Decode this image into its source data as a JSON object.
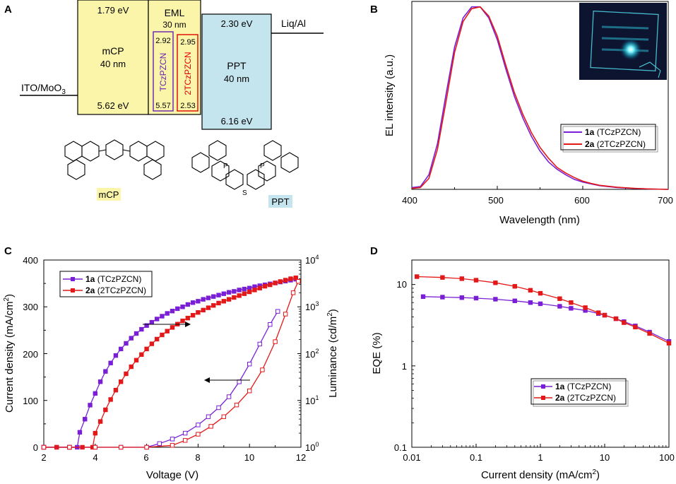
{
  "figure": {
    "panel_letters": [
      "A",
      "B",
      "C",
      "D"
    ]
  },
  "panelA": {
    "itoLabel": "ITO/MoO",
    "itoSub": "3",
    "liqLabel": "Liq/Al",
    "mcp": {
      "name": "mCP",
      "thickness": "40 nm",
      "lumo": "1.79 eV",
      "homo": "5.62 eV"
    },
    "eml": {
      "name": "EML",
      "thickness": "30 nm"
    },
    "tczpzcn": {
      "name": "TCzPZCN",
      "lumo": "2.92",
      "homo": "5.57"
    },
    "ttczpzcn": {
      "name": "2TCzPZCN",
      "lumo": "2.95",
      "homo": "2.53"
    },
    "ppt": {
      "name": "PPT",
      "thickness": "40 nm",
      "lumo": "2.30 eV",
      "homo": "6.16 eV"
    },
    "structureLabels": {
      "mcp": "mCP",
      "ppt": "PPT"
    },
    "colors": {
      "mcp": "#fbf5a9",
      "ppt": "#c5e5ee",
      "purple": "#6a1fb3",
      "red": "#e00000"
    }
  },
  "chart_data": [
    {
      "panel": "B",
      "type": "line",
      "xlabel": "Wavelength (nm)",
      "ylabel": "EL intensity (a.u.)",
      "xlim": [
        400,
        700
      ],
      "ylim": [
        0,
        1.03
      ],
      "xticks": [
        "400",
        "500",
        "600",
        "700"
      ],
      "yticks_shown": false,
      "legend": "bottom-right",
      "series": [
        {
          "name": "1a",
          "suffix": " (TCzPZCN)",
          "color": "#7a1fd6",
          "x": [
            400,
            410,
            420,
            430,
            440,
            450,
            460,
            470,
            480,
            490,
            500,
            510,
            520,
            530,
            540,
            550,
            560,
            570,
            580,
            590,
            600,
            610,
            620,
            640,
            660,
            680,
            700
          ],
          "values": [
            0.01,
            0.015,
            0.08,
            0.25,
            0.52,
            0.78,
            0.94,
            1.0,
            1.0,
            0.94,
            0.82,
            0.66,
            0.51,
            0.39,
            0.29,
            0.21,
            0.15,
            0.11,
            0.08,
            0.055,
            0.04,
            0.03,
            0.02,
            0.01,
            0.005,
            0.002,
            0.0
          ]
        },
        {
          "name": "2a",
          "suffix": " (2TCzPZCN)",
          "color": "#e31818",
          "x": [
            400,
            410,
            420,
            430,
            440,
            450,
            460,
            470,
            480,
            490,
            500,
            510,
            520,
            530,
            540,
            550,
            560,
            570,
            580,
            590,
            600,
            610,
            620,
            640,
            660,
            680,
            700
          ],
          "values": [
            0.005,
            0.01,
            0.06,
            0.22,
            0.48,
            0.75,
            0.92,
            0.99,
            1.0,
            0.95,
            0.84,
            0.68,
            0.53,
            0.41,
            0.31,
            0.23,
            0.17,
            0.12,
            0.09,
            0.065,
            0.045,
            0.032,
            0.022,
            0.012,
            0.006,
            0.002,
            0.0
          ]
        }
      ],
      "inset": "device photograph"
    },
    {
      "panel": "C",
      "type": "line",
      "xlabel": "Voltage (V)",
      "ylabel": "Current density (mA/cm",
      "ylabel_sup": "2",
      "ylabel_end": ")",
      "y2label": "Luminance (cd/m",
      "y2label_sup": "2",
      "y2label_end": ")",
      "xlim": [
        2,
        12
      ],
      "ylim": [
        0,
        400
      ],
      "y2lim": [
        1,
        10000
      ],
      "xticks": [
        "2",
        "4",
        "6",
        "8",
        "10",
        "12"
      ],
      "yticks": [
        "0",
        "100",
        "200",
        "300",
        "400"
      ],
      "y2ticks": [
        "10",
        "10",
        "10",
        "10",
        "10"
      ],
      "y2tick_exps": [
        "0",
        "1",
        "2",
        "3",
        "4"
      ],
      "legend": "top-left",
      "series": [
        {
          "name": "1a",
          "suffix": " (TCzPZCN)",
          "color": "#7a1fd6",
          "axis": "left",
          "filled": true,
          "x": [
            2.0,
            2.5,
            3.0,
            3.3,
            3.4,
            3.6,
            3.8,
            4.0,
            4.2,
            4.4,
            4.6,
            4.8,
            5.0,
            5.2,
            5.4,
            5.6,
            5.8,
            6.0,
            6.2,
            6.4,
            6.6,
            6.8,
            7.0,
            7.2,
            7.4,
            7.6,
            7.8,
            8.0,
            8.2,
            8.4,
            8.6,
            8.8,
            9.0,
            9.2,
            9.4,
            9.6,
            9.8,
            10.0,
            10.2,
            10.4,
            10.6,
            10.8,
            11.0,
            11.2,
            11.4,
            11.6,
            11.8
          ],
          "values": [
            0,
            0,
            0,
            0,
            32,
            60,
            90,
            115,
            140,
            162,
            180,
            196,
            210,
            222,
            233,
            243,
            252,
            260,
            267,
            274,
            280,
            286,
            291,
            296,
            300,
            305,
            309,
            312,
            316,
            319,
            322,
            325,
            328,
            331,
            333,
            336,
            338,
            340,
            343,
            345,
            347,
            349,
            351,
            353,
            355,
            357,
            359
          ]
        },
        {
          "name": "2a",
          "suffix": " (2TCzPZCN)",
          "color": "#e31818",
          "axis": "left",
          "filled": true,
          "x": [
            2.0,
            2.5,
            3.0,
            3.5,
            3.9,
            4.0,
            4.2,
            4.4,
            4.6,
            4.8,
            5.0,
            5.2,
            5.4,
            5.6,
            5.8,
            6.0,
            6.2,
            6.4,
            6.6,
            6.8,
            7.0,
            7.2,
            7.4,
            7.6,
            7.8,
            8.0,
            8.2,
            8.4,
            8.6,
            8.8,
            9.0,
            9.2,
            9.4,
            9.6,
            9.8,
            10.0,
            10.2,
            10.4,
            10.6,
            10.8,
            11.0,
            11.2,
            11.4,
            11.6,
            11.8
          ],
          "values": [
            0,
            0,
            0,
            0,
            0,
            30,
            55,
            80,
            102,
            122,
            140,
            157,
            172,
            186,
            198,
            210,
            221,
            231,
            240,
            248,
            256,
            263,
            270,
            276,
            282,
            288,
            293,
            298,
            303,
            308,
            312,
            316,
            320,
            324,
            328,
            332,
            336,
            340,
            344,
            347,
            351,
            354,
            357,
            360,
            362
          ]
        },
        {
          "name": "1a luminance",
          "color": "#7a1fd6",
          "axis": "right",
          "filled": false,
          "x": [
            2.0,
            3.0,
            4.0,
            5.0,
            6.0,
            6.5,
            7.0,
            7.5,
            8.0,
            8.4,
            8.8,
            9.2,
            9.6,
            10.0,
            10.4,
            10.8,
            11.1
          ],
          "values": [
            1,
            1,
            1,
            1,
            1,
            1.2,
            1.5,
            2,
            3,
            4.5,
            7,
            12,
            25,
            60,
            160,
            420,
            800
          ]
        },
        {
          "name": "2a luminance",
          "color": "#e31818",
          "axis": "right",
          "filled": false,
          "x": [
            2.0,
            3.0,
            4.0,
            5.0,
            6.0,
            7.0,
            7.5,
            8.0,
            8.5,
            9.0,
            9.5,
            10.0,
            10.5,
            11.0,
            11.4,
            11.7,
            11.9
          ],
          "values": [
            1,
            1,
            1,
            1,
            1,
            1.1,
            1.4,
            1.9,
            2.8,
            4.5,
            8,
            16,
            45,
            180,
            700,
            2000,
            3500
          ]
        }
      ]
    },
    {
      "panel": "D",
      "type": "line",
      "xlabel": "Current density (mA/cm",
      "xlabel_sup": "2",
      "xlabel_end": ")",
      "ylabel": "EQE (%)",
      "xscale": "log",
      "yscale": "log",
      "xlim": [
        0.01,
        100
      ],
      "ylim": [
        0.1,
        20
      ],
      "xticks": [
        "0.01",
        "0.1",
        "1",
        "10",
        "100"
      ],
      "yticks": [
        "0.1",
        "1",
        "10"
      ],
      "legend": "bottom-right",
      "series": [
        {
          "name": "1a",
          "suffix": " (TCzPZCN)",
          "color": "#7a1fd6",
          "x": [
            0.015,
            0.03,
            0.06,
            0.1,
            0.2,
            0.4,
            0.7,
            1,
            2,
            3,
            5,
            8,
            10,
            15,
            20,
            30,
            50,
            100
          ],
          "values": [
            7.1,
            7.0,
            6.9,
            6.8,
            6.6,
            6.3,
            6.0,
            5.8,
            5.4,
            5.1,
            4.8,
            4.4,
            4.2,
            3.8,
            3.5,
            3.1,
            2.6,
            2.0
          ]
        },
        {
          "name": "2a",
          "suffix": " (2TCzPZCN)",
          "color": "#e31818",
          "x": [
            0.012,
            0.03,
            0.06,
            0.1,
            0.2,
            0.4,
            0.7,
            1,
            2,
            3,
            5,
            8,
            10,
            15,
            20,
            30,
            50,
            100
          ],
          "values": [
            12.5,
            12.2,
            11.8,
            11.3,
            10.5,
            9.5,
            8.5,
            7.8,
            6.7,
            6.0,
            5.2,
            4.5,
            4.2,
            3.8,
            3.4,
            3.0,
            2.5,
            1.9
          ]
        }
      ]
    }
  ]
}
